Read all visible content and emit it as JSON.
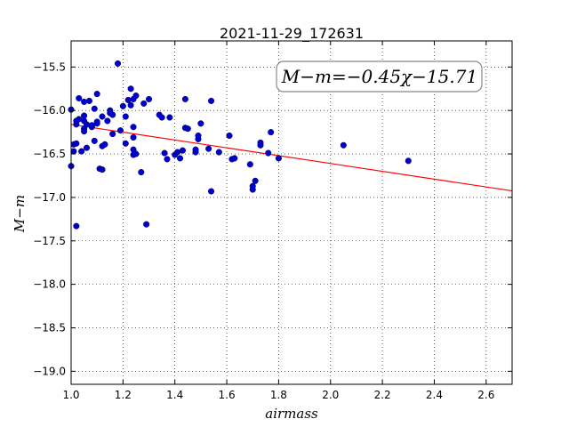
{
  "chart_data": {
    "type": "scatter",
    "title": "2021-11-29_172631",
    "xlabel": "airmass",
    "ylabel": "M−m",
    "xlim": [
      1.0,
      2.7
    ],
    "ylim": [
      -19.15,
      -15.2
    ],
    "y_inverted": true,
    "grid": true,
    "x_ticks": [
      1.0,
      1.2,
      1.4,
      1.6,
      1.8,
      2.0,
      2.2,
      2.4,
      2.6
    ],
    "x_tick_labels": [
      "1.0",
      "1.2",
      "1.4",
      "1.6",
      "1.8",
      "2.0",
      "2.2",
      "2.4",
      "2.6"
    ],
    "y_ticks": [
      -15.5,
      -16.0,
      -16.5,
      -17.0,
      -17.5,
      -18.0,
      -18.5,
      -19.0
    ],
    "y_tick_labels": [
      "−15.5",
      "−16.0",
      "−16.5",
      "−17.0",
      "−17.5",
      "−18.0",
      "−18.5",
      "−19.0"
    ],
    "annotation": "M−m=−0.45χ−15.71",
    "fit": {
      "slope": -0.45,
      "intercept": -15.71,
      "color": "#ff0000"
    },
    "point_color": "#0000cc",
    "points": [
      [
        1.0,
        -15.99
      ],
      [
        1.0,
        -16.64
      ],
      [
        1.01,
        -16.47
      ],
      [
        1.01,
        -16.39
      ],
      [
        1.02,
        -16.16
      ],
      [
        1.02,
        -16.38
      ],
      [
        1.02,
        -16.12
      ],
      [
        1.03,
        -15.86
      ],
      [
        1.03,
        -16.1
      ],
      [
        1.02,
        -17.33
      ],
      [
        1.04,
        -16.47
      ],
      [
        1.05,
        -15.9
      ],
      [
        1.05,
        -16.06
      ],
      [
        1.05,
        -16.12
      ],
      [
        1.05,
        -16.21
      ],
      [
        1.05,
        -16.24
      ],
      [
        1.06,
        -16.43
      ],
      [
        1.06,
        -16.16
      ],
      [
        1.07,
        -15.89
      ],
      [
        1.08,
        -16.19
      ],
      [
        1.08,
        -16.17
      ],
      [
        1.09,
        -15.98
      ],
      [
        1.09,
        -16.35
      ],
      [
        1.1,
        -16.13
      ],
      [
        1.1,
        -16.15
      ],
      [
        1.1,
        -15.81
      ],
      [
        1.11,
        -16.67
      ],
      [
        1.12,
        -16.68
      ],
      [
        1.12,
        -16.41
      ],
      [
        1.12,
        -16.07
      ],
      [
        1.13,
        -16.39
      ],
      [
        1.14,
        -16.12
      ],
      [
        1.15,
        -16.03
      ],
      [
        1.15,
        -16.0
      ],
      [
        1.16,
        -16.05
      ],
      [
        1.16,
        -16.27
      ],
      [
        1.18,
        -15.46
      ],
      [
        1.19,
        -16.23
      ],
      [
        1.2,
        -15.95
      ],
      [
        1.21,
        -16.07
      ],
      [
        1.21,
        -16.38
      ],
      [
        1.22,
        -15.88
      ],
      [
        1.23,
        -15.75
      ],
      [
        1.23,
        -15.94
      ],
      [
        1.24,
        -16.19
      ],
      [
        1.24,
        -16.31
      ],
      [
        1.24,
        -15.87
      ],
      [
        1.24,
        -16.45
      ],
      [
        1.24,
        -16.51
      ],
      [
        1.25,
        -16.5
      ],
      [
        1.25,
        -15.83
      ],
      [
        1.27,
        -16.71
      ],
      [
        1.28,
        -15.92
      ],
      [
        1.29,
        -17.31
      ],
      [
        1.3,
        -15.87
      ],
      [
        1.34,
        -16.05
      ],
      [
        1.35,
        -16.08
      ],
      [
        1.36,
        -16.49
      ],
      [
        1.37,
        -16.56
      ],
      [
        1.38,
        -16.08
      ],
      [
        1.4,
        -16.51
      ],
      [
        1.41,
        -16.48
      ],
      [
        1.42,
        -16.55
      ],
      [
        1.43,
        -16.46
      ],
      [
        1.44,
        -16.2
      ],
      [
        1.44,
        -15.87
      ],
      [
        1.45,
        -16.21
      ],
      [
        1.48,
        -16.48
      ],
      [
        1.48,
        -16.45
      ],
      [
        1.49,
        -16.33
      ],
      [
        1.49,
        -16.29
      ],
      [
        1.5,
        -16.15
      ],
      [
        1.53,
        -16.44
      ],
      [
        1.54,
        -16.93
      ],
      [
        1.54,
        -15.89
      ],
      [
        1.57,
        -16.48
      ],
      [
        1.61,
        -16.29
      ],
      [
        1.62,
        -16.56
      ],
      [
        1.63,
        -16.55
      ],
      [
        1.69,
        -16.62
      ],
      [
        1.7,
        -16.87
      ],
      [
        1.7,
        -16.91
      ],
      [
        1.71,
        -16.81
      ],
      [
        1.73,
        -16.37
      ],
      [
        1.73,
        -16.4
      ],
      [
        1.76,
        -16.49
      ],
      [
        1.77,
        -16.25
      ],
      [
        1.8,
        -16.55
      ],
      [
        2.05,
        -16.4
      ],
      [
        2.3,
        -16.58
      ]
    ]
  }
}
